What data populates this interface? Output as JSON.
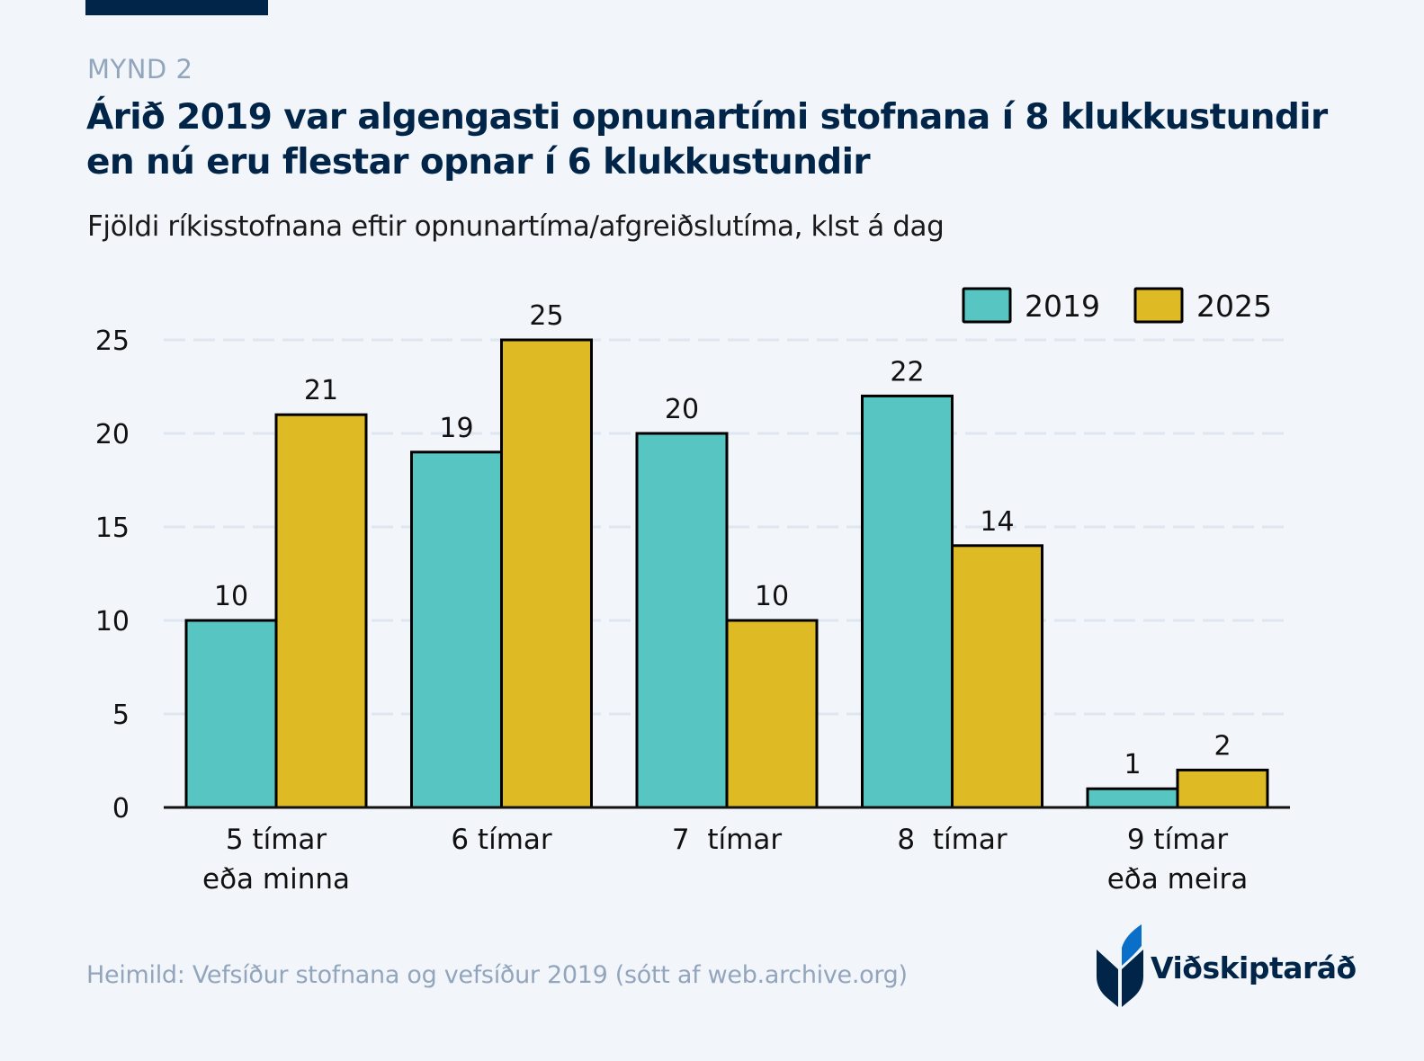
{
  "header": {
    "eyebrow": "MYND 2",
    "title": "Árið 2019 var algengasti opnunartími stofnana í 8 klukkustundir en nú eru flestar opnar í 6 klukkustundir",
    "subtitle": "Fjöldi ríkisstofnana eftir opnunartíma/afgreiðslutíma, klst á dag"
  },
  "footer": {
    "source": "Heimild: Vefsíður stofnana og vefsíður 2019 (sótt af web.archive.org)",
    "logo_text": "Viðskiptaráð"
  },
  "colors": {
    "brand_navy": "#002548",
    "brand_blue": "#0a6fc9",
    "series_2019": "#57c5c2",
    "series_2025": "#debb25",
    "muted_text": "#93a5bd",
    "gridline": "#dfe6ef",
    "background": "#f2f6fb"
  },
  "chart_data": {
    "type": "bar",
    "title": "Árið 2019 var algengasti opnunartími stofnana í 8 klukkustundir en nú eru flestar opnar í 6 klukkustundir",
    "subtitle": "Fjöldi ríkisstofnana eftir opnunartíma/afgreiðslutíma, klst á dag",
    "xlabel": "",
    "ylabel": "",
    "categories": [
      [
        "5 tímar",
        "eða minna"
      ],
      [
        "6 tímar"
      ],
      [
        "7  tímar"
      ],
      [
        "8  tímar"
      ],
      [
        "9 tímar",
        "eða meira"
      ]
    ],
    "series": [
      {
        "name": "2019",
        "color": "#57c5c2",
        "values": [
          10,
          19,
          20,
          22,
          1
        ]
      },
      {
        "name": "2025",
        "color": "#debb25",
        "values": [
          21,
          25,
          10,
          14,
          2
        ]
      }
    ],
    "ylim": [
      0,
      25
    ],
    "yticks": [
      0,
      5,
      10,
      15,
      20,
      25
    ],
    "grid": true,
    "grid_style": "dashed",
    "data_labels": true,
    "legend": {
      "position": "top-right",
      "entries": [
        "2019",
        "2025"
      ]
    }
  }
}
